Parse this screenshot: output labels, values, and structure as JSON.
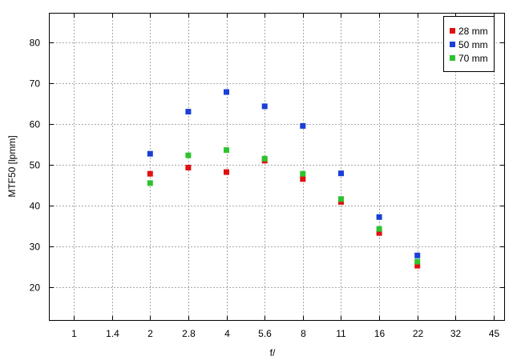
{
  "chart_data": {
    "type": "scatter",
    "xlabel": "f/",
    "ylabel": "MTF50 [lpmm]",
    "x_ticks": [
      "1",
      "1.4",
      "2",
      "2.8",
      "4",
      "5.6",
      "8",
      "11",
      "16",
      "22",
      "32",
      "45"
    ],
    "ylim": [
      12,
      87
    ],
    "y_ticks": [
      20,
      30,
      40,
      50,
      60,
      70,
      80
    ],
    "grid": true,
    "legend_position": "top-right",
    "series": [
      {
        "name": "28 mm",
        "color": "#e01010",
        "x": [
          "2",
          "2.8",
          "4",
          "5.6",
          "8",
          "11",
          "16",
          "22"
        ],
        "values": [
          47.8,
          49.3,
          48.2,
          51.0,
          46.5,
          40.9,
          33.3,
          25.3
        ]
      },
      {
        "name": "50 mm",
        "color": "#1a3fd6",
        "x": [
          "2",
          "2.8",
          "4",
          "5.6",
          "8",
          "11",
          "16",
          "22"
        ],
        "values": [
          52.7,
          63.0,
          67.8,
          64.3,
          59.5,
          47.9,
          37.2,
          27.8
        ]
      },
      {
        "name": "70 mm",
        "color": "#2ec32e",
        "x": [
          "2",
          "2.8",
          "4",
          "5.6",
          "8",
          "11",
          "16",
          "22"
        ],
        "values": [
          45.5,
          52.3,
          53.6,
          51.5,
          47.8,
          41.6,
          34.3,
          26.3
        ]
      }
    ]
  }
}
